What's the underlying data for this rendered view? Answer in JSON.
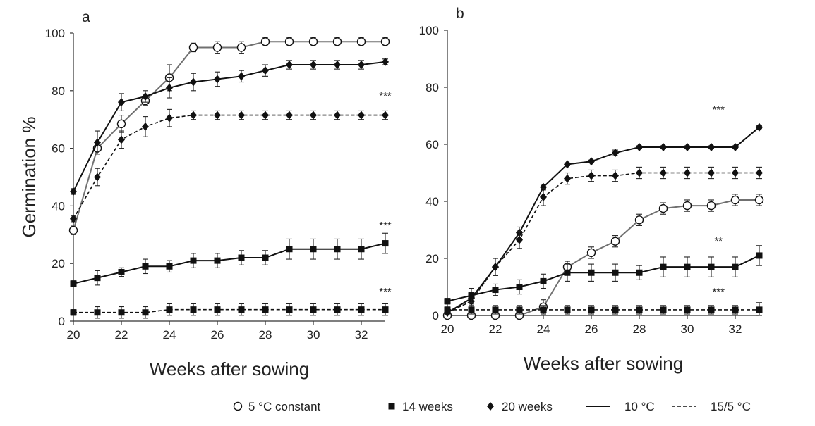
{
  "chart_data": [
    {
      "type": "line",
      "panel": "a",
      "xlabel": "Weeks after sowing",
      "ylabel": "Germination %",
      "xlim": [
        20,
        33
      ],
      "ylim": [
        0,
        100
      ],
      "xticks": [
        "20",
        "22",
        "24",
        "26",
        "28",
        "30",
        "32"
      ],
      "yticks": [
        "0",
        "20",
        "40",
        "60",
        "80",
        "100"
      ],
      "series": [
        {
          "name": "5 °C constant",
          "marker": "circle",
          "line": "solid",
          "color": "#707070",
          "x": [
            20,
            21,
            22,
            23,
            24,
            25,
            26,
            27,
            28,
            29,
            30,
            31,
            32,
            33
          ],
          "y": [
            31.5,
            60,
            68.5,
            76.5,
            84.5,
            95,
            95,
            95,
            97,
            97,
            97,
            97,
            97,
            97
          ],
          "err": [
            1.5,
            2,
            3,
            1.5,
            4.5,
            1.5,
            2,
            2,
            1.5,
            1.5,
            1.5,
            1.5,
            1.5,
            1.5
          ]
        },
        {
          "name": "20 weeks, 10 °C",
          "marker": "diamond",
          "line": "solid",
          "color": "#111111",
          "x": [
            20,
            21,
            22,
            23,
            24,
            25,
            26,
            27,
            28,
            29,
            30,
            31,
            32,
            33
          ],
          "y": [
            45,
            62,
            76,
            78,
            81,
            83,
            84,
            85,
            87,
            89,
            89,
            89,
            89,
            90
          ],
          "err": [
            1,
            4,
            3,
            2,
            3.5,
            3,
            2.5,
            2,
            2,
            1.5,
            1.5,
            1.5,
            1.5,
            1
          ]
        },
        {
          "name": "20 weeks, 15/5 °C",
          "marker": "diamond",
          "line": "dashed",
          "color": "#111111",
          "x": [
            20,
            21,
            22,
            23,
            24,
            25,
            26,
            27,
            28,
            29,
            30,
            31,
            32,
            33
          ],
          "y": [
            35.5,
            50,
            63,
            67.5,
            70.5,
            71.5,
            71.5,
            71.5,
            71.5,
            71.5,
            71.5,
            71.5,
            71.5,
            71.5
          ],
          "err": [
            1,
            3,
            3,
            3.5,
            3,
            1.5,
            1.5,
            1.5,
            1.5,
            1.5,
            1.5,
            1.5,
            1.5,
            1.5
          ]
        },
        {
          "name": "14 weeks, 10 °C",
          "marker": "square",
          "line": "solid",
          "color": "#111111",
          "x": [
            20,
            21,
            22,
            23,
            24,
            25,
            26,
            27,
            28,
            29,
            30,
            31,
            32,
            33
          ],
          "y": [
            13,
            15,
            17,
            19,
            19,
            21,
            21,
            22,
            22,
            25,
            25,
            25,
            25,
            27
          ],
          "err": [
            1,
            2.5,
            1.5,
            2.5,
            2,
            2.5,
            2.5,
            2.5,
            2.5,
            3.5,
            3.5,
            3.5,
            3.5,
            3.5
          ]
        },
        {
          "name": "14 weeks, 15/5 °C",
          "marker": "square",
          "line": "dashed",
          "color": "#111111",
          "x": [
            20,
            21,
            22,
            23,
            24,
            25,
            26,
            27,
            28,
            29,
            30,
            31,
            32,
            33
          ],
          "y": [
            3,
            3,
            3,
            3,
            4,
            4,
            4,
            4,
            4,
            4,
            4,
            4,
            4,
            4
          ],
          "err": [
            1,
            2,
            2,
            2,
            2,
            2,
            2,
            2,
            2,
            2,
            2,
            2,
            2,
            2
          ]
        }
      ],
      "annotations": [
        {
          "text": "***",
          "x": 33,
          "y": 77
        },
        {
          "text": "***",
          "x": 33,
          "y": 32
        },
        {
          "text": "***",
          "x": 33,
          "y": 9
        }
      ]
    },
    {
      "type": "line",
      "panel": "b",
      "xlabel": "Weeks after sowing",
      "ylabel": "",
      "xlim": [
        20,
        33
      ],
      "ylim": [
        0,
        100
      ],
      "xticks": [
        "20",
        "22",
        "24",
        "26",
        "28",
        "30",
        "32"
      ],
      "yticks": [
        "0",
        "20",
        "40",
        "60",
        "80",
        "100"
      ],
      "series": [
        {
          "name": "5 °C constant",
          "marker": "circle",
          "line": "solid",
          "color": "#707070",
          "x": [
            20,
            21,
            22,
            23,
            24,
            25,
            26,
            27,
            28,
            29,
            30,
            31,
            32,
            33
          ],
          "y": [
            0,
            0,
            0,
            0,
            3,
            17,
            22,
            26,
            33.5,
            37.5,
            38.5,
            38.5,
            40.5,
            40.5
          ],
          "err": [
            0.5,
            0.5,
            0.5,
            0.5,
            2.5,
            2,
            2,
            2,
            2,
            2,
            2,
            2,
            2,
            2
          ]
        },
        {
          "name": "20 weeks, 10 °C",
          "marker": "diamond",
          "line": "solid",
          "color": "#111111",
          "x": [
            20,
            21,
            22,
            23,
            24,
            25,
            26,
            27,
            28,
            29,
            30,
            31,
            32,
            33
          ],
          "y": [
            1,
            6,
            17,
            29,
            45,
            53,
            54,
            57,
            59,
            59,
            59,
            59,
            59,
            66
          ],
          "err": [
            0.5,
            2,
            3,
            2,
            1,
            0.5,
            0.5,
            1,
            0.5,
            0.5,
            0.5,
            0.5,
            0.5,
            0.5
          ]
        },
        {
          "name": "20 weeks, 15/5 °C",
          "marker": "diamond",
          "line": "dashed",
          "color": "#111111",
          "x": [
            20,
            21,
            22,
            23,
            24,
            25,
            26,
            27,
            28,
            29,
            30,
            31,
            32,
            33
          ],
          "y": [
            1,
            5,
            17,
            26.5,
            41.5,
            48,
            49,
            49,
            50,
            50,
            50,
            50,
            50,
            50
          ],
          "err": [
            0.5,
            2,
            3,
            3,
            3,
            2,
            2,
            2,
            2,
            2,
            2,
            2,
            2,
            2
          ]
        },
        {
          "name": "14 weeks, 10 °C",
          "marker": "square",
          "line": "solid",
          "color": "#111111",
          "x": [
            20,
            21,
            22,
            23,
            24,
            25,
            26,
            27,
            28,
            29,
            30,
            31,
            32,
            33
          ],
          "y": [
            5,
            7,
            9,
            10,
            12,
            15,
            15,
            15,
            15,
            17,
            17,
            17,
            17,
            21
          ],
          "err": [
            1,
            2.5,
            2,
            2.5,
            2.5,
            3,
            3,
            3,
            2.5,
            3.5,
            3.5,
            3.5,
            3.5,
            3.5
          ]
        },
        {
          "name": "14 weeks, 15/5 °C",
          "marker": "square",
          "line": "dashed",
          "color": "#111111",
          "x": [
            20,
            21,
            22,
            23,
            24,
            25,
            26,
            27,
            28,
            29,
            30,
            31,
            32,
            33
          ],
          "y": [
            2,
            2,
            2,
            2,
            2,
            2,
            2,
            2,
            2,
            2,
            2,
            2,
            2,
            2
          ],
          "err": [
            1,
            1.5,
            1.5,
            1.5,
            1.5,
            1.5,
            1.5,
            1.5,
            1.5,
            1.5,
            1.5,
            1.5,
            1.5,
            2.5
          ]
        }
      ],
      "annotations": [
        {
          "text": "***",
          "x": 31.3,
          "y": 71
        },
        {
          "text": "**",
          "x": 31.3,
          "y": 25
        },
        {
          "text": "***",
          "x": 31.3,
          "y": 7
        }
      ]
    }
  ],
  "legend": {
    "items": [
      {
        "symbol": "circle",
        "label": "5 °C constant"
      },
      {
        "symbol": "square",
        "label": "14 weeks"
      },
      {
        "symbol": "diamond",
        "label": "20 weeks"
      },
      {
        "symbol": "solid-line",
        "label": "10 °C"
      },
      {
        "symbol": "dashed-line",
        "label": "15/5 °C"
      }
    ]
  }
}
